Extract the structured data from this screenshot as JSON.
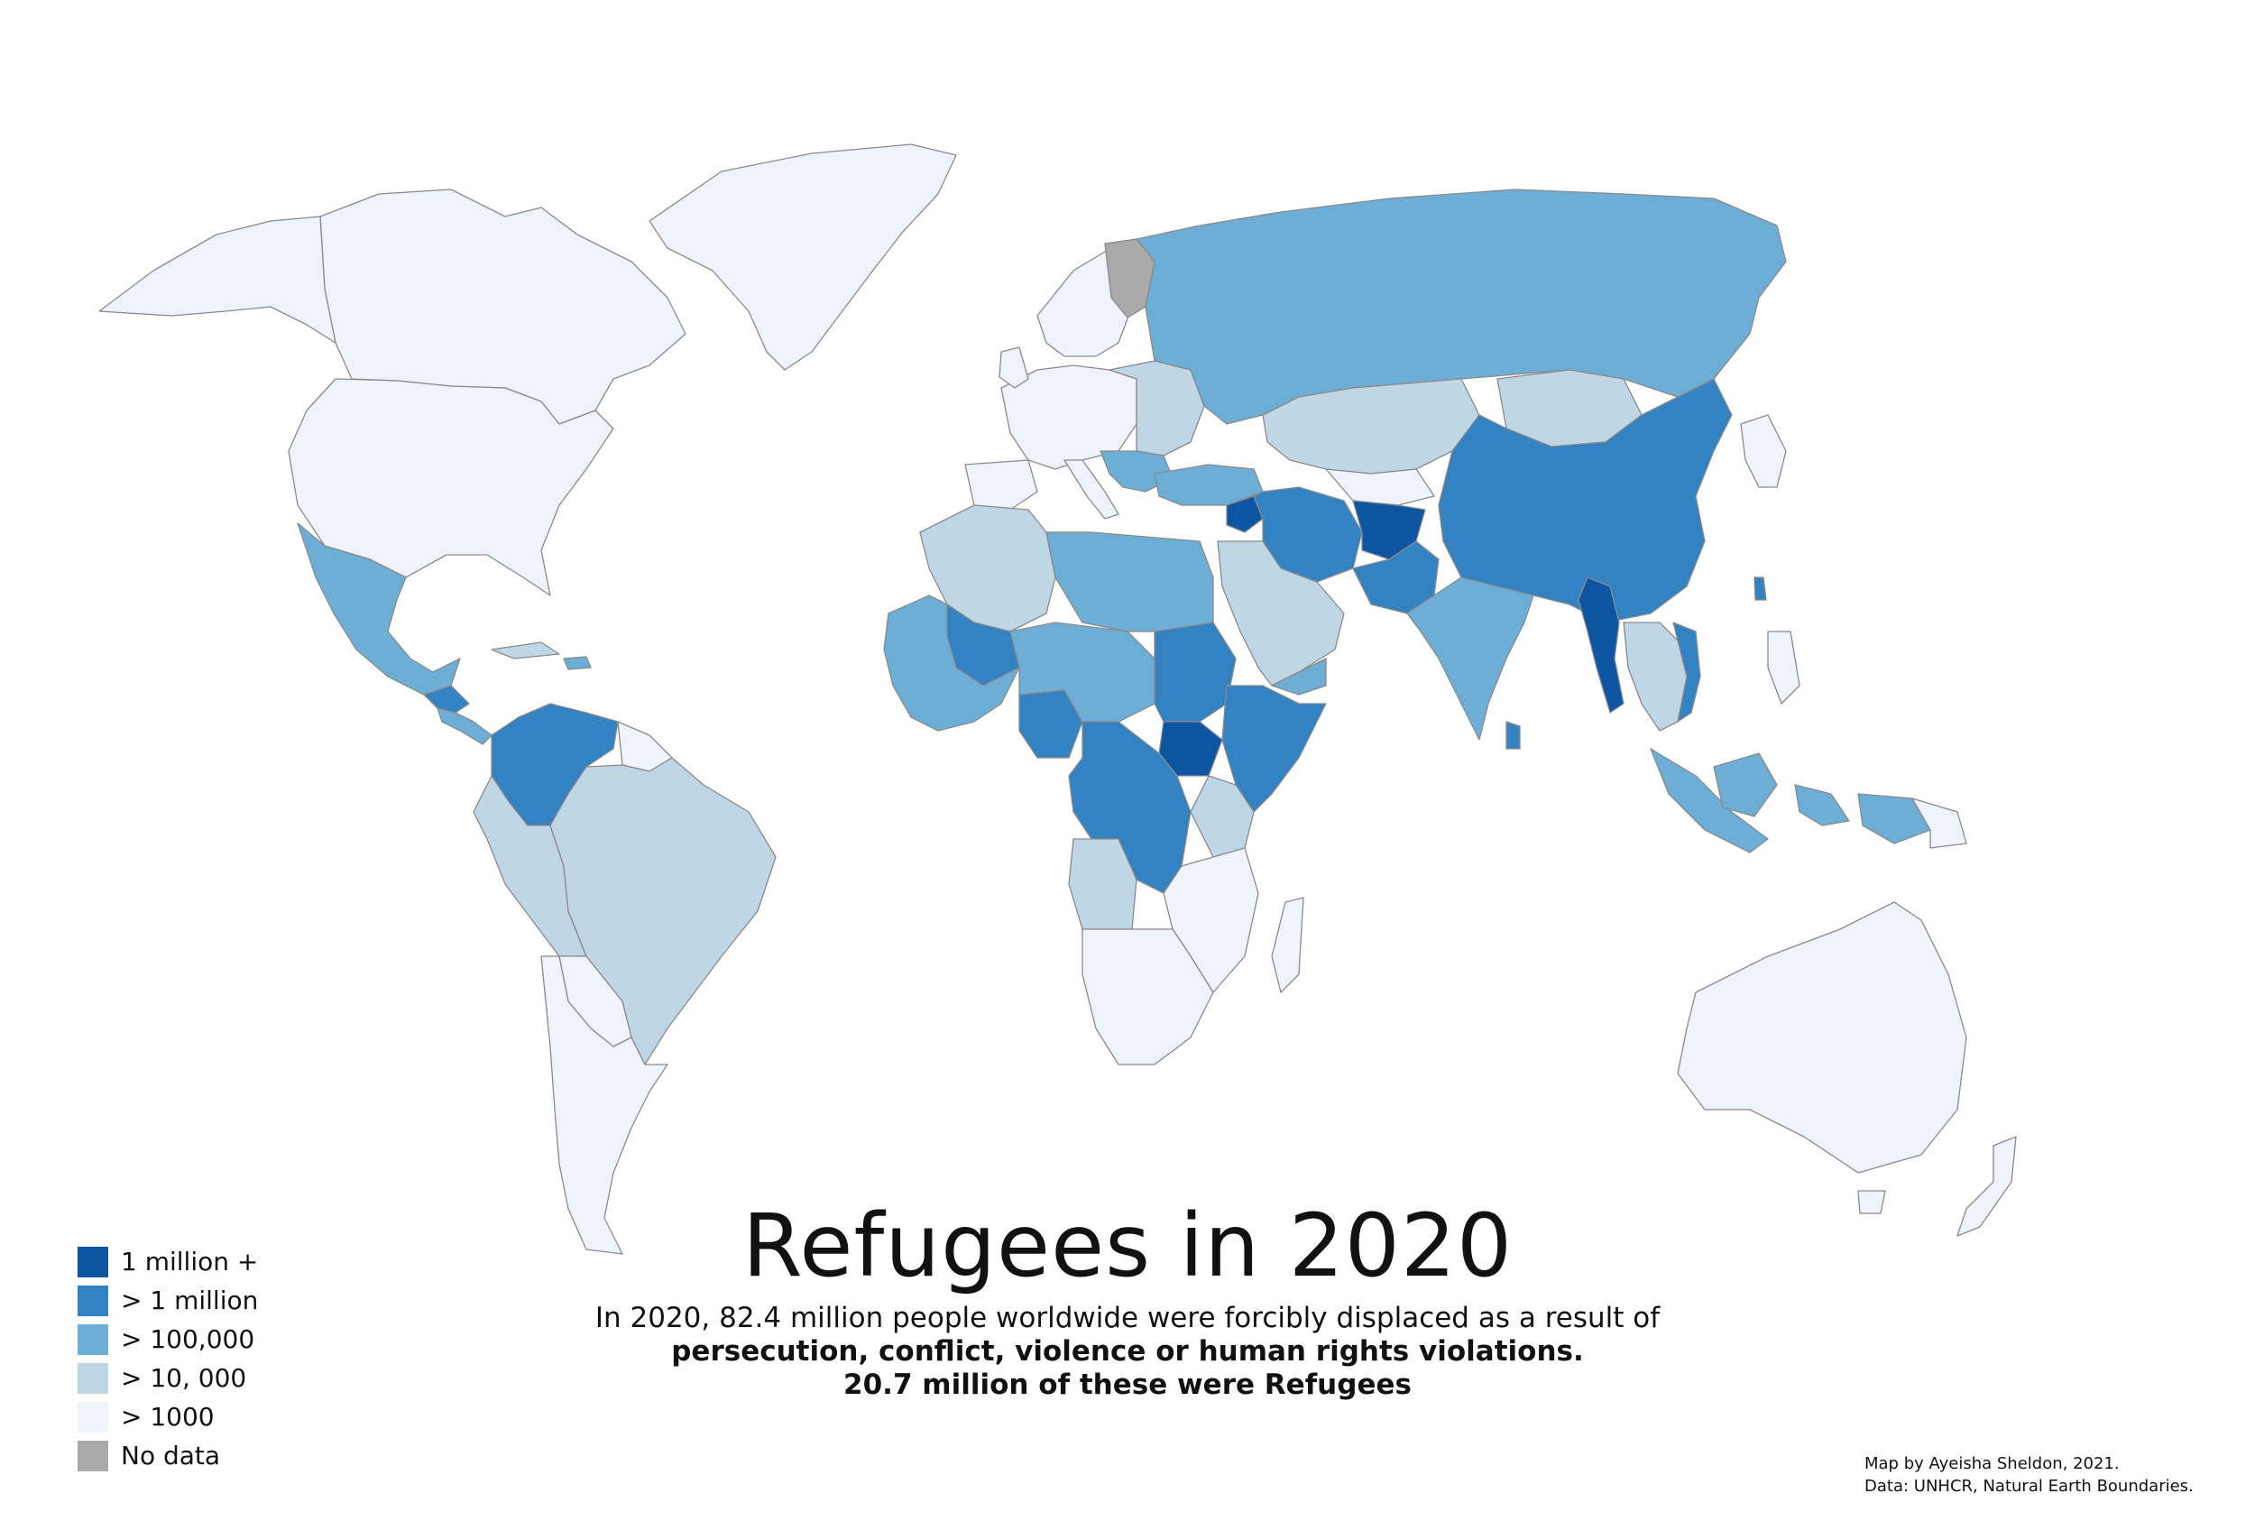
{
  "title": "Refugees in 2020",
  "subtitle": {
    "line1": "In 2020, 82.4 million people worldwide were forcibly displaced as a result of",
    "line2": "persecution, conflict, violence or human rights violations.",
    "line3": "20.7 million of these were Refugees"
  },
  "legend": [
    {
      "label": "1 million +",
      "color": "#0b55a3"
    },
    {
      "label": "> 1 million",
      "color": "#3383c2"
    },
    {
      "label": "> 100,000",
      "color": "#6caed6"
    },
    {
      "label": "> 10, 000",
      "color": "#bfd6e6"
    },
    {
      "label": "> 1000",
      "color": "#eef3fc"
    },
    {
      "label": "No data",
      "color": "#aaaaaa"
    }
  ],
  "credits": {
    "line1": "Map by Ayeisha Sheldon, 2021.",
    "line2": "Data: UNHCR, Natural Earth Boundaries."
  }
}
